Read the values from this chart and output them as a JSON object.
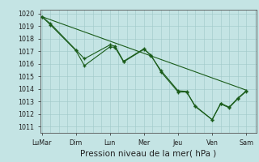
{
  "background_color": "#c4e4e4",
  "grid_color": "#a0c8c8",
  "line_color": "#1a5c1a",
  "title": "Pression niveau de la mer( hPa )",
  "ylim_min": 1010.5,
  "ylim_max": 1020.3,
  "yticks": [
    1011,
    1012,
    1013,
    1014,
    1015,
    1016,
    1017,
    1018,
    1019,
    1020
  ],
  "x_labels": [
    "LuMar",
    "Dim",
    "Lun",
    "Mer",
    "Jeu",
    "Ven",
    "Sam"
  ],
  "x_ticks_pos": [
    0,
    2,
    4,
    6,
    8,
    10,
    12
  ],
  "xlim_min": -0.1,
  "xlim_max": 12.6,
  "series1_x": [
    0,
    0.5,
    2,
    2.5,
    4,
    4.3,
    4.8,
    6,
    6.4,
    7.0,
    8.0,
    8.5,
    9.0,
    10.0,
    10.5,
    11.0,
    11.5,
    12.0
  ],
  "series1_y": [
    1019.75,
    1019.1,
    1017.05,
    1015.85,
    1017.35,
    1017.3,
    1016.15,
    1017.15,
    1016.7,
    1015.35,
    1013.75,
    1013.75,
    1012.65,
    1011.55,
    1012.8,
    1012.5,
    1013.2,
    1013.8
  ],
  "series2_x": [
    0,
    0.5,
    2,
    2.5,
    4,
    4.3,
    4.8,
    6,
    6.4,
    7.0,
    8.0,
    8.5,
    9.0,
    10.0,
    10.5,
    11.0,
    11.5,
    12.0
  ],
  "series2_y": [
    1019.75,
    1019.2,
    1017.1,
    1016.4,
    1017.5,
    1017.4,
    1016.2,
    1017.2,
    1016.65,
    1015.45,
    1013.85,
    1013.8,
    1012.6,
    1011.55,
    1012.85,
    1012.55,
    1013.25,
    1013.85
  ],
  "trend_x": [
    0,
    12.0
  ],
  "trend_y": [
    1019.75,
    1013.9
  ],
  "title_fontsize": 7.5,
  "tick_fontsize": 5.8
}
